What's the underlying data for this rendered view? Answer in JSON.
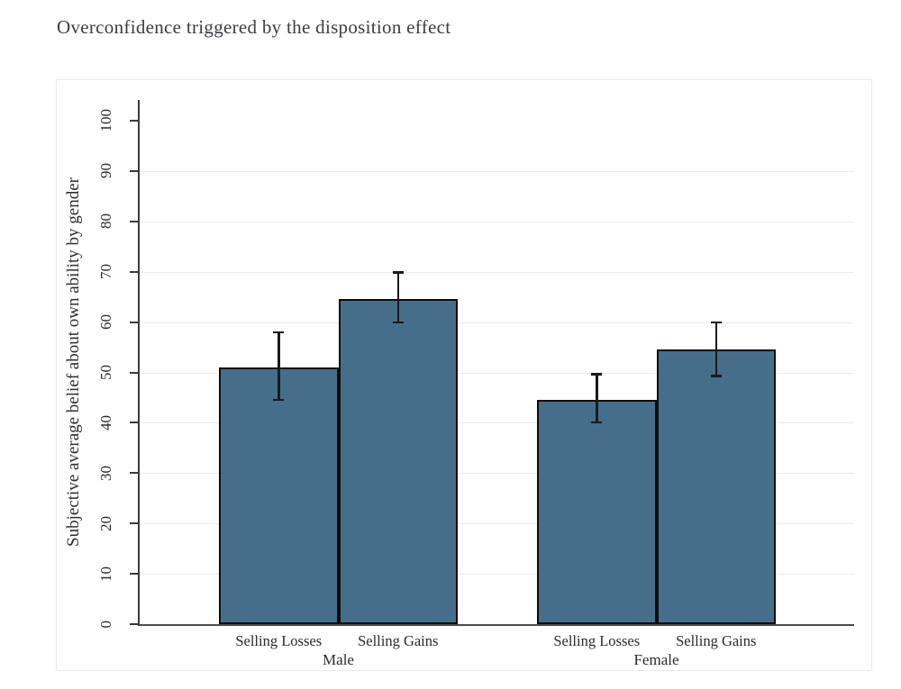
{
  "page_title": "Overconfidence triggered by the disposition effect",
  "chart_data": {
    "type": "bar",
    "title": "Overconfidence triggered by the disposition effect",
    "xlabel": "",
    "ylabel": "Subjective average belief about own ability by gender",
    "ylim": [
      0,
      100
    ],
    "yticks": [
      0,
      10,
      20,
      30,
      40,
      50,
      60,
      70,
      80,
      90,
      100
    ],
    "grid": "horizontal light gridlines at 10 through 90",
    "legend_position": "none",
    "error_bars": "confidence interval with caps",
    "groups": [
      {
        "label": "Male",
        "bars": [
          {
            "category": "Selling Losses",
            "value": 51.0,
            "ci_low": 44.5,
            "ci_high": 58.0
          },
          {
            "category": "Selling Gains",
            "value": 64.5,
            "ci_low": 59.9,
            "ci_high": 69.9
          }
        ]
      },
      {
        "label": "Female",
        "bars": [
          {
            "category": "Selling Losses",
            "value": 44.5,
            "ci_low": 40.0,
            "ci_high": 49.7
          },
          {
            "category": "Selling Gains",
            "value": 54.5,
            "ci_low": 49.2,
            "ci_high": 60.0
          }
        ]
      }
    ],
    "colors": {
      "bar_fill": "#456e8a",
      "bar_border": "#0c0c0c",
      "error_bar": "#1a1a1a",
      "axis": "#3b3b3b",
      "gridline": "#ececec",
      "title_text": "#3c3c44",
      "tick_text": "#2e2e2e"
    }
  }
}
